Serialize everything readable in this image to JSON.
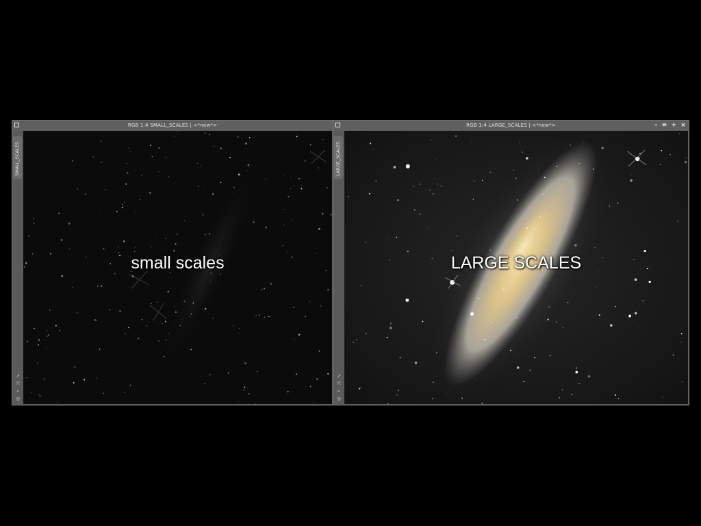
{
  "colors": {
    "background": "#000000",
    "window_chrome": "#5d5d5d",
    "title_text": "#e8e8e8"
  },
  "windows": [
    {
      "title": "RGB 1:4 SMALL_SCALES | <*new*>",
      "side_tab": "SMALL_SCALES",
      "caption": "small scales",
      "image": "residual-small-scale-structures"
    },
    {
      "title": "RGB 1:4 LARGE_SCALES | <*new*>",
      "side_tab": "LARGE_SCALES",
      "caption": "LARGE SCALES",
      "image": "galaxy-large-scale-structures",
      "controls": {
        "minimize": "–",
        "shade": "≖",
        "maximize": "+",
        "close": "×"
      }
    }
  ],
  "sidebar_tools": [
    {
      "icon": "expand-icon",
      "glyph": "↗"
    },
    {
      "icon": "fit-icon",
      "glyph": "⤧"
    },
    {
      "icon": "zoom-icon",
      "glyph": "⌕"
    },
    {
      "icon": "target-icon",
      "glyph": "◎"
    }
  ]
}
